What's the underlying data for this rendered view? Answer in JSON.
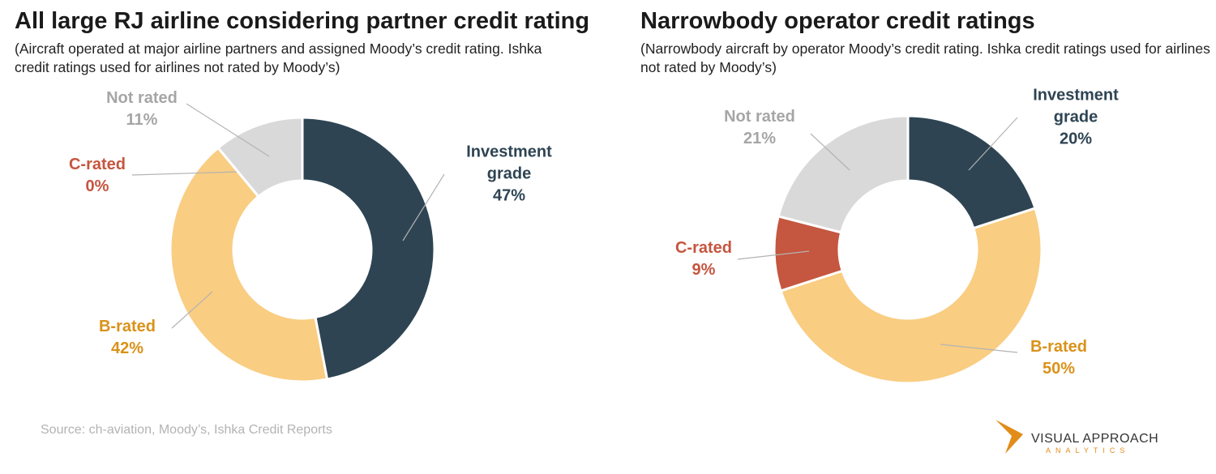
{
  "chart_data": [
    {
      "type": "donut",
      "title": "All large RJ airline considering partner credit rating",
      "subtitle": "(Aircraft operated at major airline partners and assigned Moody’s credit rating. Ishka credit ratings used for airlines not rated by Moody’s)",
      "categories": [
        "Investment grade",
        "B-rated",
        "C-rated",
        "Not rated"
      ],
      "values": [
        47,
        42,
        0,
        11
      ],
      "value_labels": [
        "47%",
        "42%",
        "0%",
        "11%"
      ],
      "colors": [
        "#2e4453",
        "#f9cd82",
        "#c5563f",
        "#d9d9d9"
      ],
      "label_colors": [
        "#2e4453",
        "#d9921a",
        "#c5563f",
        "#a6a6a6"
      ]
    },
    {
      "type": "donut",
      "title": "Narrowbody operator credit ratings",
      "subtitle": "(Narrowbody aircraft by operator Moody’s credit rating.  Ishka credit ratings used for airlines not rated by Moody’s)",
      "categories": [
        "Investment grade",
        "B-rated",
        "C-rated",
        "Not rated"
      ],
      "values": [
        20,
        50,
        9,
        21
      ],
      "value_labels": [
        "20%",
        "50%",
        "9%",
        "21%"
      ],
      "colors": [
        "#2e4453",
        "#f9cd82",
        "#c5563f",
        "#d9d9d9"
      ],
      "label_colors": [
        "#2e4453",
        "#d9921a",
        "#c5563f",
        "#a6a6a6"
      ]
    }
  ],
  "source": "Source: ch-aviation, Moody’s, Ishka Credit Reports",
  "logo": {
    "name": "VISUAL APPROACH",
    "tagline": "ANALYTICS"
  }
}
